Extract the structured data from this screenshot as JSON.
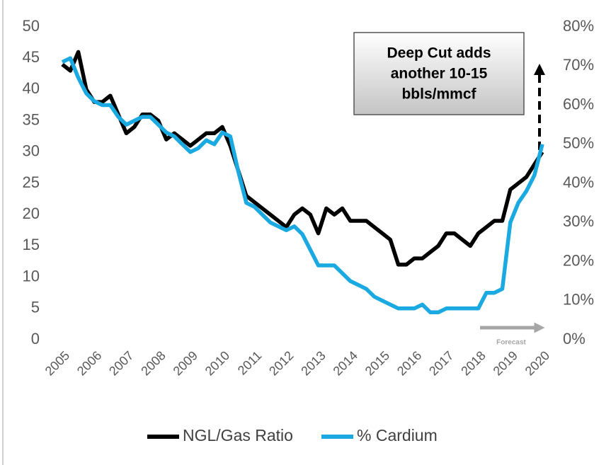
{
  "chart_data": {
    "type": "line",
    "x": [
      2005,
      2005.25,
      2005.5,
      2005.75,
      2006,
      2006.25,
      2006.5,
      2006.75,
      2007,
      2007.25,
      2007.5,
      2007.75,
      2008,
      2008.25,
      2008.5,
      2008.75,
      2009,
      2009.25,
      2009.5,
      2009.75,
      2010,
      2010.25,
      2010.5,
      2010.75,
      2011,
      2011.25,
      2011.5,
      2011.75,
      2012,
      2012.25,
      2012.5,
      2012.75,
      2013,
      2013.25,
      2013.5,
      2013.75,
      2014,
      2014.25,
      2014.5,
      2014.75,
      2015,
      2015.25,
      2015.5,
      2015.75,
      2016,
      2016.25,
      2016.5,
      2016.75,
      2017,
      2017.25,
      2017.5,
      2017.75,
      2018,
      2018.25,
      2018.5,
      2018.75,
      2019,
      2019.25,
      2019.5,
      2019.75,
      2020
    ],
    "series": [
      {
        "name": "NGL/Gas Ratio",
        "color": "#000000",
        "axis": "y",
        "values": [
          44,
          43,
          46,
          40,
          38,
          38,
          39,
          36,
          33,
          34,
          36,
          36,
          35,
          32,
          33,
          32,
          31,
          32,
          33,
          33,
          34,
          31,
          27,
          23,
          22,
          21,
          20,
          19,
          18,
          20,
          21,
          20,
          17,
          21,
          20,
          21,
          19,
          19,
          19,
          18,
          17,
          16,
          12,
          12,
          13,
          13,
          14,
          15,
          17,
          17,
          16,
          15,
          17,
          18,
          19,
          19,
          24,
          25,
          26,
          28,
          30
        ]
      },
      {
        "name": "% Cardium",
        "color": "#1ba9e1",
        "axis": "y2",
        "values": [
          71,
          72,
          67,
          63,
          61,
          60,
          60,
          57,
          55,
          56,
          57,
          57,
          55,
          53,
          52,
          50,
          48,
          49,
          51,
          50,
          53,
          52,
          43,
          35,
          34,
          32,
          30,
          29,
          28,
          29,
          27,
          23,
          19,
          19,
          19,
          17,
          15,
          14,
          13,
          11,
          10,
          9,
          8,
          8,
          8,
          9,
          7,
          7,
          8,
          8,
          8,
          8,
          8,
          12,
          12,
          13,
          30,
          35,
          38,
          42,
          50
        ]
      }
    ],
    "xlim": [
      2005,
      2020
    ],
    "xticks": [
      2005,
      2006,
      2007,
      2008,
      2009,
      2010,
      2011,
      2012,
      2013,
      2014,
      2015,
      2016,
      2017,
      2018,
      2019,
      2020
    ],
    "ylim": [
      0,
      50
    ],
    "yticks": [
      0,
      5,
      10,
      15,
      20,
      25,
      30,
      35,
      40,
      45,
      50
    ],
    "y2lim": [
      0,
      80
    ],
    "y2ticks": [
      {
        "value": 0,
        "label": "0%"
      },
      {
        "value": 10,
        "label": "10%"
      },
      {
        "value": 20,
        "label": "20%"
      },
      {
        "value": 30,
        "label": "30%"
      },
      {
        "value": 40,
        "label": "40%"
      },
      {
        "value": 50,
        "label": "50%"
      },
      {
        "value": 60,
        "label": "60%"
      },
      {
        "value": 70,
        "label": "70%"
      },
      {
        "value": 80,
        "label": "80%"
      }
    ],
    "annotation": [
      "Deep Cut adds",
      "another 10-15",
      "bbls/mmcf"
    ],
    "forecast_label": "Forecast",
    "legend": "bottom"
  }
}
